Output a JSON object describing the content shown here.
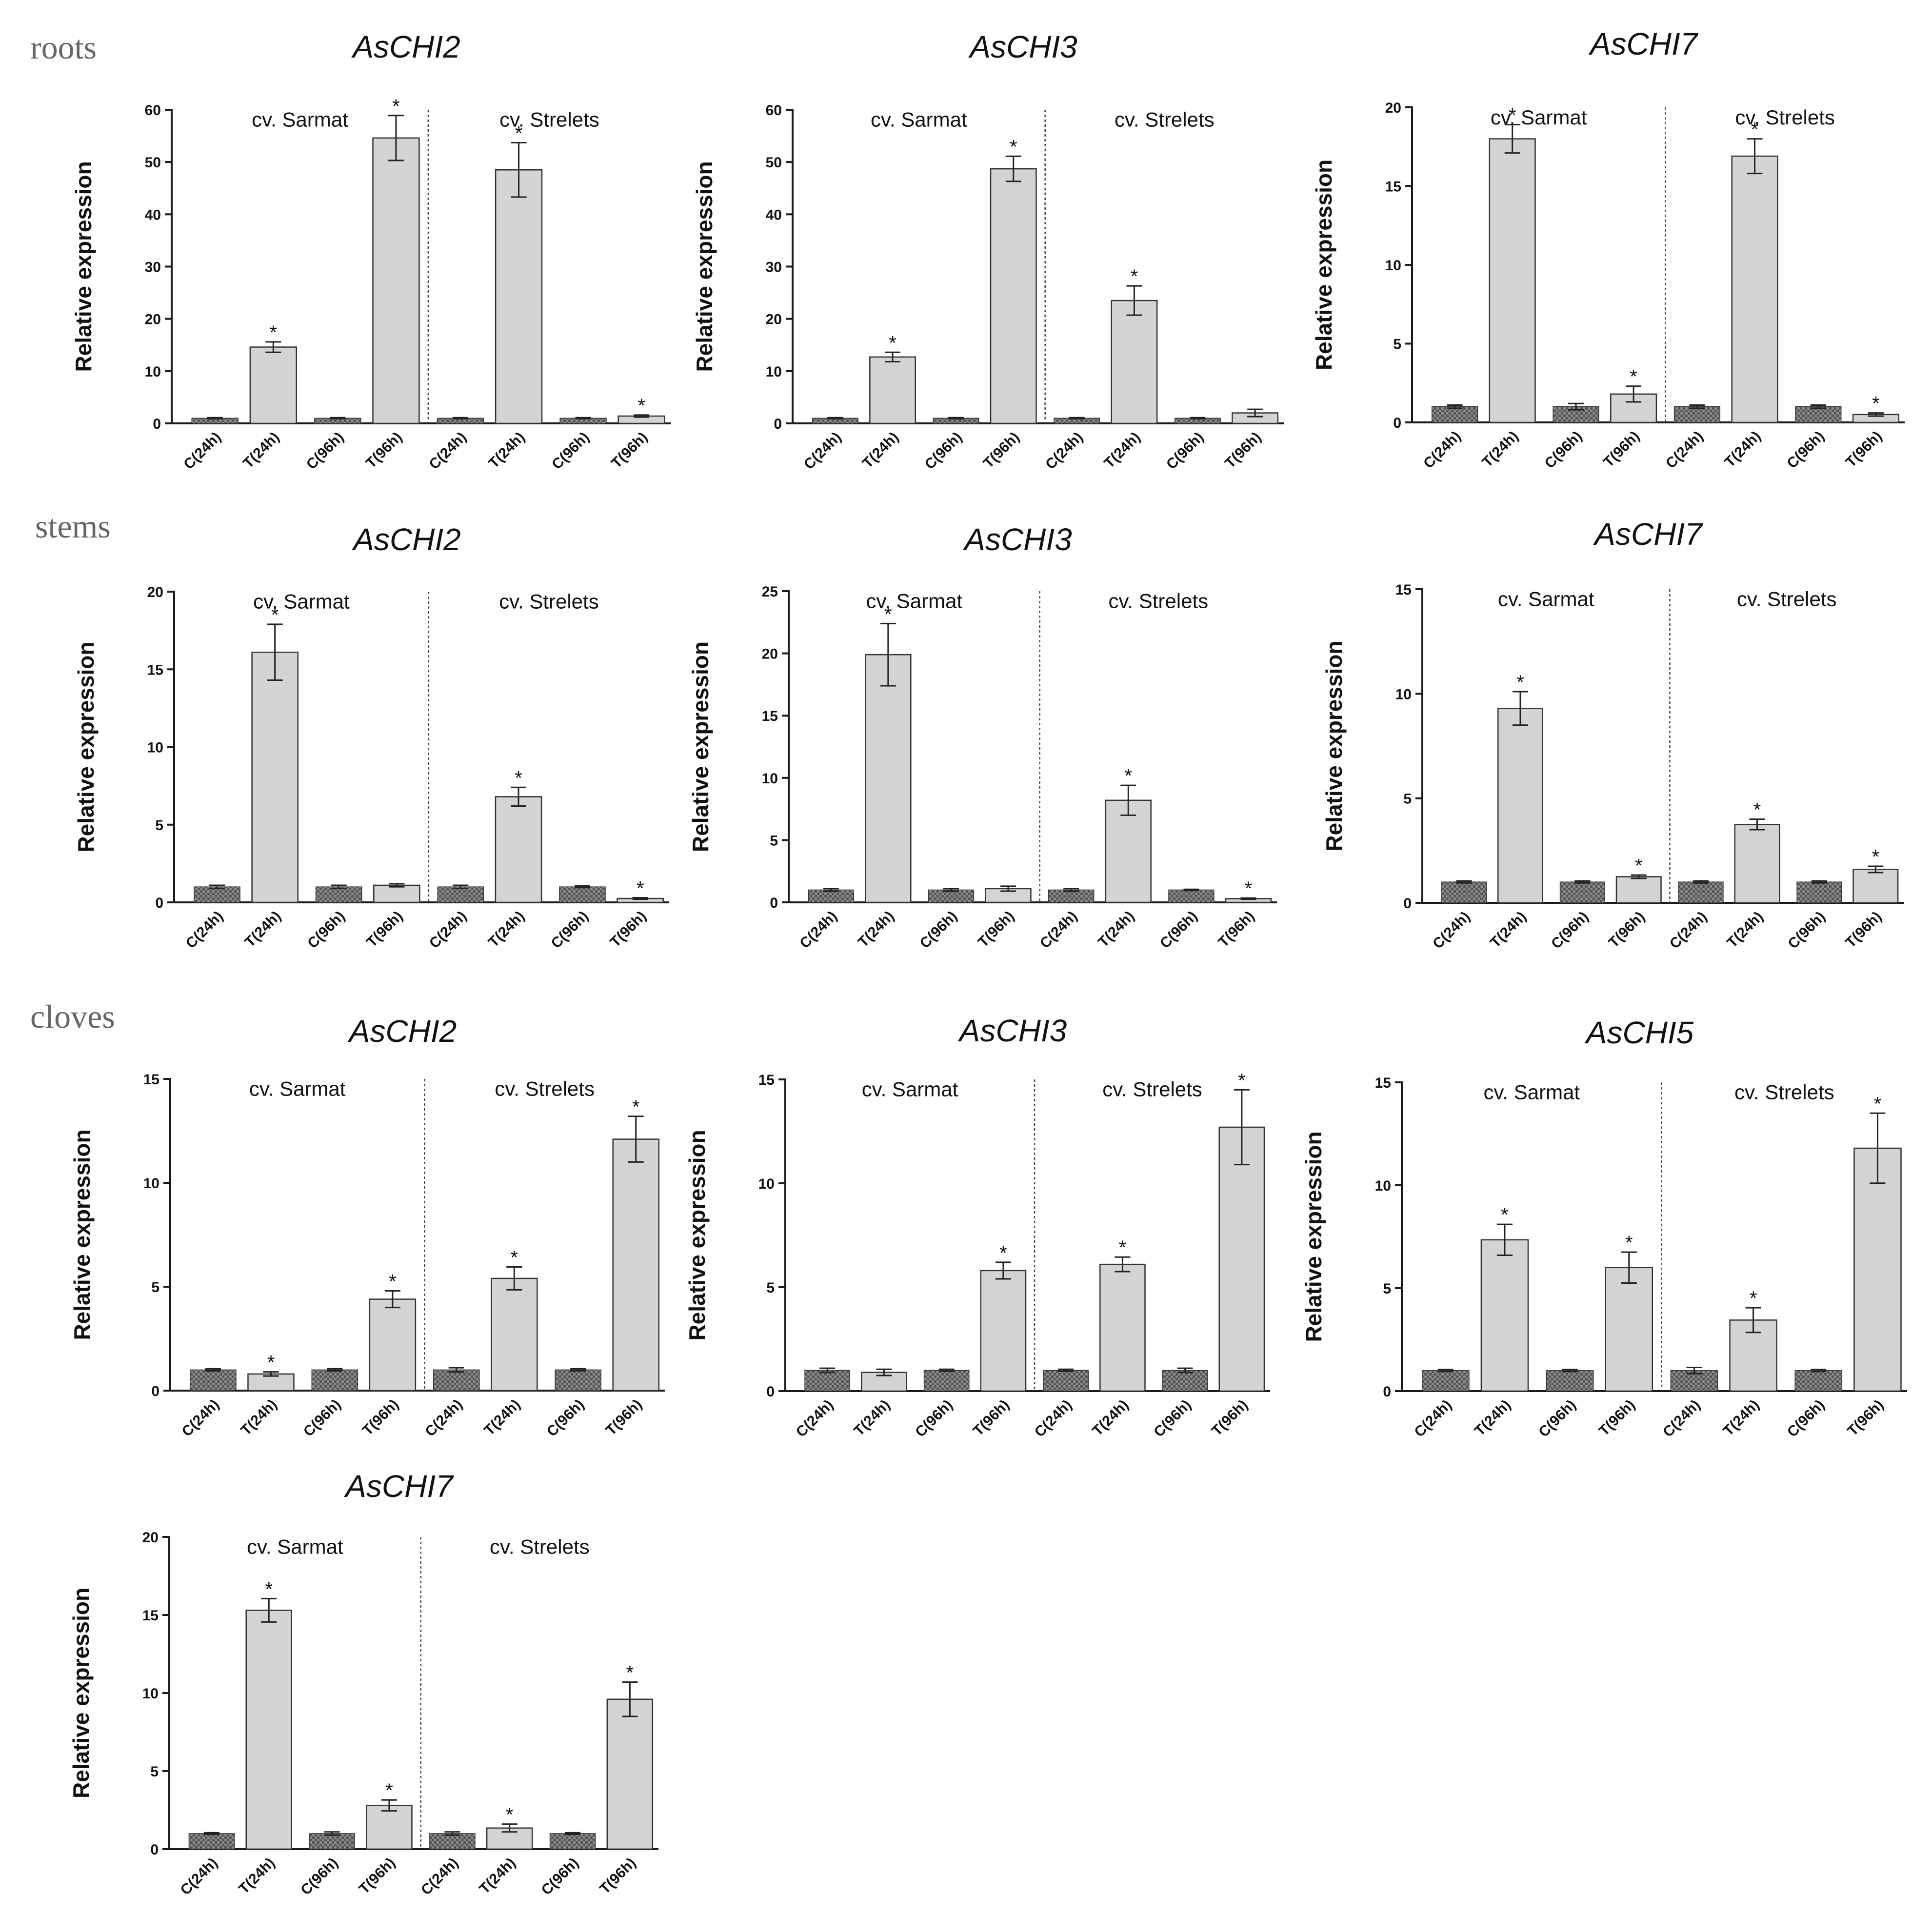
{
  "figure": {
    "row_labels": [
      "roots",
      "stems",
      "cloves"
    ]
  },
  "styles": {
    "control_bar_color": "#555555",
    "treated_bar_color": "#d4d4d4",
    "bar_stroke": "#333333"
  },
  "chart_data": [
    {
      "type": "bar",
      "row": "roots",
      "title": "AsCHI2",
      "ylabel": "Relative expression",
      "ylim": [
        0,
        60
      ],
      "yticks": [
        0,
        10,
        20,
        30,
        40,
        50,
        60
      ],
      "groups": [
        "cv. Sarmat",
        "cv. Strelets"
      ],
      "categories": [
        "C(24h)",
        "T(24h)",
        "C(96h)",
        "T(96h)",
        "C(24h)",
        "T(24h)",
        "C(96h)",
        "T(96h)"
      ],
      "values": [
        1,
        14.6,
        1,
        54.6,
        1,
        48.5,
        1,
        1.4
      ],
      "errors": [
        0.1,
        1.0,
        0.1,
        4.3,
        0.1,
        5.2,
        0.1,
        0.2
      ],
      "significant": [
        false,
        true,
        false,
        true,
        false,
        true,
        false,
        true
      ],
      "star_symbol": "*"
    },
    {
      "type": "bar",
      "row": "roots",
      "title": "AsCHI3",
      "ylabel": "Relative expression",
      "ylim": [
        0,
        60
      ],
      "yticks": [
        0,
        10,
        20,
        30,
        40,
        50,
        60
      ],
      "groups": [
        "cv. Sarmat",
        "cv. Strelets"
      ],
      "categories": [
        "C(24h)",
        "T(24h)",
        "C(96h)",
        "T(96h)",
        "C(24h)",
        "T(24h)",
        "C(96h)",
        "T(96h)"
      ],
      "values": [
        1,
        12.7,
        1,
        48.7,
        1,
        23.5,
        1,
        2.0
      ],
      "errors": [
        0.1,
        0.9,
        0.1,
        2.4,
        0.1,
        2.8,
        0.1,
        0.7
      ],
      "significant": [
        false,
        true,
        false,
        true,
        false,
        true,
        false,
        false
      ],
      "star_symbol": "*"
    },
    {
      "type": "bar",
      "row": "roots",
      "title": "AsCHI7",
      "ylabel": "Relative expression",
      "ylim": [
        0,
        20
      ],
      "yticks": [
        0,
        5,
        10,
        15,
        20
      ],
      "groups": [
        "cv. Sarmat",
        "cv. Strelets"
      ],
      "categories": [
        "C(24h)",
        "T(24h)",
        "C(96h)",
        "T(96h)",
        "C(24h)",
        "T(24h)",
        "C(96h)",
        "T(96h)"
      ],
      "values": [
        1,
        18.0,
        1,
        1.8,
        1,
        16.9,
        1,
        0.5
      ],
      "errors": [
        0.1,
        0.9,
        0.2,
        0.5,
        0.1,
        1.1,
        0.1,
        0.1
      ],
      "significant": [
        false,
        true,
        false,
        true,
        false,
        true,
        false,
        true
      ],
      "star_symbol": "*"
    },
    {
      "type": "bar",
      "row": "stems",
      "title": "AsCHI2",
      "ylabel": "Relative expression",
      "ylim": [
        0,
        20
      ],
      "yticks": [
        0,
        5,
        10,
        15,
        20
      ],
      "groups": [
        "cv. Sarmat",
        "cv. Strelets"
      ],
      "categories": [
        "C(24h)",
        "T(24h)",
        "C(96h)",
        "T(96h)",
        "C(24h)",
        "T(24h)",
        "C(96h)",
        "T(96h)"
      ],
      "values": [
        1,
        16.1,
        1,
        1.1,
        1,
        6.8,
        1,
        0.25
      ],
      "errors": [
        0.1,
        1.8,
        0.1,
        0.1,
        0.1,
        0.6,
        0.05,
        0.05
      ],
      "significant": [
        false,
        true,
        false,
        false,
        false,
        true,
        false,
        true
      ],
      "star_symbol": "*"
    },
    {
      "type": "bar",
      "row": "stems",
      "title": "AsCHI3",
      "ylabel": "Relative expression",
      "ylim": [
        0,
        25
      ],
      "yticks": [
        0,
        5,
        10,
        15,
        20,
        25
      ],
      "groups": [
        "cv. Sarmat",
        "cv. Strelets"
      ],
      "categories": [
        "C(24h)",
        "T(24h)",
        "C(96h)",
        "T(96h)",
        "C(24h)",
        "T(24h)",
        "C(96h)",
        "T(96h)"
      ],
      "values": [
        1,
        19.9,
        1,
        1.1,
        1,
        8.2,
        1,
        0.3
      ],
      "errors": [
        0.1,
        2.5,
        0.1,
        0.2,
        0.1,
        1.2,
        0.05,
        0.05
      ],
      "significant": [
        false,
        true,
        false,
        false,
        false,
        true,
        false,
        true
      ],
      "star_symbol": "*"
    },
    {
      "type": "bar",
      "row": "stems",
      "title": "AsCHI7",
      "ylabel": "Relative expression",
      "ylim": [
        0,
        15
      ],
      "yticks": [
        0,
        5,
        10,
        15
      ],
      "groups": [
        "cv. Sarmat",
        "cv. Strelets"
      ],
      "categories": [
        "C(24h)",
        "T(24h)",
        "C(96h)",
        "T(96h)",
        "C(24h)",
        "T(24h)",
        "C(96h)",
        "T(96h)"
      ],
      "values": [
        1,
        9.3,
        1,
        1.25,
        1,
        3.75,
        1,
        1.6
      ],
      "errors": [
        0.05,
        0.8,
        0.05,
        0.08,
        0.05,
        0.25,
        0.05,
        0.15
      ],
      "significant": [
        false,
        true,
        false,
        true,
        false,
        true,
        false,
        true
      ],
      "star_symbol": "*"
    },
    {
      "type": "bar",
      "row": "cloves",
      "title": "AsCHI2",
      "ylabel": "Relative expression",
      "ylim": [
        0,
        15
      ],
      "yticks": [
        0,
        5,
        10,
        15
      ],
      "groups": [
        "cv. Sarmat",
        "cv. Strelets"
      ],
      "categories": [
        "C(24h)",
        "T(24h)",
        "C(96h)",
        "T(96h)",
        "C(24h)",
        "T(24h)",
        "C(96h)",
        "T(96h)"
      ],
      "values": [
        1,
        0.8,
        1,
        4.4,
        1,
        5.4,
        1,
        12.1
      ],
      "errors": [
        0.05,
        0.1,
        0.05,
        0.4,
        0.1,
        0.55,
        0.05,
        1.1
      ],
      "significant": [
        false,
        true,
        false,
        true,
        false,
        true,
        false,
        true
      ],
      "star_symbol": "*"
    },
    {
      "type": "bar",
      "row": "cloves",
      "title": "AsCHI3",
      "ylabel": "Relative expression",
      "ylim": [
        0,
        15
      ],
      "yticks": [
        0,
        5,
        10,
        15
      ],
      "groups": [
        "cv. Sarmat",
        "cv. Strelets"
      ],
      "categories": [
        "C(24h)",
        "T(24h)",
        "C(96h)",
        "T(96h)",
        "C(24h)",
        "T(24h)",
        "C(96h)",
        "T(96h)"
      ],
      "values": [
        1,
        0.9,
        1,
        5.8,
        1,
        6.1,
        1,
        12.7
      ],
      "errors": [
        0.1,
        0.15,
        0.05,
        0.4,
        0.05,
        0.35,
        0.1,
        1.8
      ],
      "significant": [
        false,
        false,
        false,
        true,
        false,
        true,
        false,
        true
      ],
      "star_symbol": "*"
    },
    {
      "type": "bar",
      "row": "cloves",
      "title": "AsCHI5",
      "ylabel": "Relative expression",
      "ylim": [
        0,
        15
      ],
      "yticks": [
        0,
        5,
        10,
        15
      ],
      "groups": [
        "cv. Sarmat",
        "cv. Strelets"
      ],
      "categories": [
        "C(24h)",
        "T(24h)",
        "C(96h)",
        "T(96h)",
        "C(24h)",
        "T(24h)",
        "C(96h)",
        "T(96h)"
      ],
      "values": [
        1,
        7.35,
        1,
        6.0,
        1,
        3.45,
        1,
        11.8
      ],
      "errors": [
        0.05,
        0.75,
        0.05,
        0.75,
        0.15,
        0.6,
        0.05,
        1.7
      ],
      "significant": [
        false,
        true,
        false,
        true,
        false,
        true,
        false,
        true
      ],
      "star_symbol": "*"
    },
    {
      "type": "bar",
      "row": "cloves",
      "title": "AsCHI7",
      "ylabel": "Relative expression",
      "ylim": [
        0,
        20
      ],
      "yticks": [
        0,
        5,
        10,
        15,
        20
      ],
      "groups": [
        "cv. Sarmat",
        "cv. Strelets"
      ],
      "categories": [
        "C(24h)",
        "T(24h)",
        "C(96h)",
        "T(96h)",
        "C(24h)",
        "T(24h)",
        "C(96h)",
        "T(96h)"
      ],
      "values": [
        1,
        15.3,
        1,
        2.8,
        1,
        1.35,
        1,
        9.6
      ],
      "errors": [
        0.05,
        0.75,
        0.1,
        0.35,
        0.1,
        0.25,
        0.05,
        1.1
      ],
      "significant": [
        false,
        true,
        false,
        true,
        false,
        true,
        false,
        true
      ],
      "star_symbol": "*"
    }
  ]
}
